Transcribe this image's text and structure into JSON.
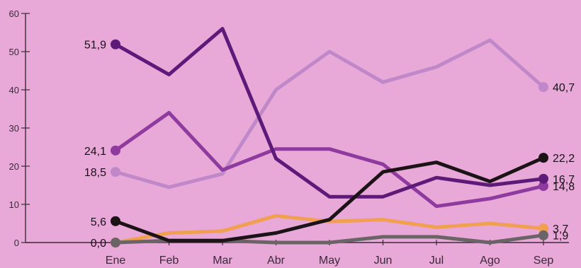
{
  "chart_data": {
    "type": "line",
    "categories": [
      "Ene",
      "Feb",
      "Mar",
      "Abr",
      "May",
      "Jun",
      "Jul",
      "Ago",
      "Sep"
    ],
    "y_ticks": [
      0,
      10,
      20,
      30,
      40,
      50,
      60
    ],
    "ylim": [
      0,
      60
    ],
    "grid": false,
    "legend": "none",
    "series": [
      {
        "color": "#5e1a78",
        "values": [
          51.9,
          44,
          56,
          22,
          12,
          12,
          17,
          15,
          16.7
        ],
        "start_label": "51,9",
        "end_label": "16,7"
      },
      {
        "color": "#c088c8",
        "values": [
          18.5,
          14.5,
          18,
          40,
          50,
          42,
          46,
          53,
          40.7
        ],
        "start_label": "18,5",
        "end_label": "40,7"
      },
      {
        "color": "#8e3a9e",
        "values": [
          24.1,
          34,
          19,
          24.5,
          24.5,
          20.5,
          9.5,
          11.5,
          14.8
        ],
        "start_label": "24,1",
        "end_label": "14,8"
      },
      {
        "color": "#1c1316",
        "values": [
          5.6,
          0.5,
          0.5,
          2.5,
          6,
          18.5,
          21,
          16,
          22.2
        ],
        "start_label": "5,6",
        "end_label": "22,2"
      },
      {
        "color": "#f0a050",
        "values": [
          0,
          2.5,
          3,
          7,
          5.5,
          6,
          4,
          5,
          3.7
        ],
        "start_label": "0,0",
        "end_label": "3,7"
      },
      {
        "color": "#6b6467",
        "values": [
          0,
          0.5,
          0.5,
          0,
          0,
          1.5,
          1.5,
          0,
          1.9
        ],
        "start_label": "",
        "end_label": "1,9"
      }
    ]
  }
}
